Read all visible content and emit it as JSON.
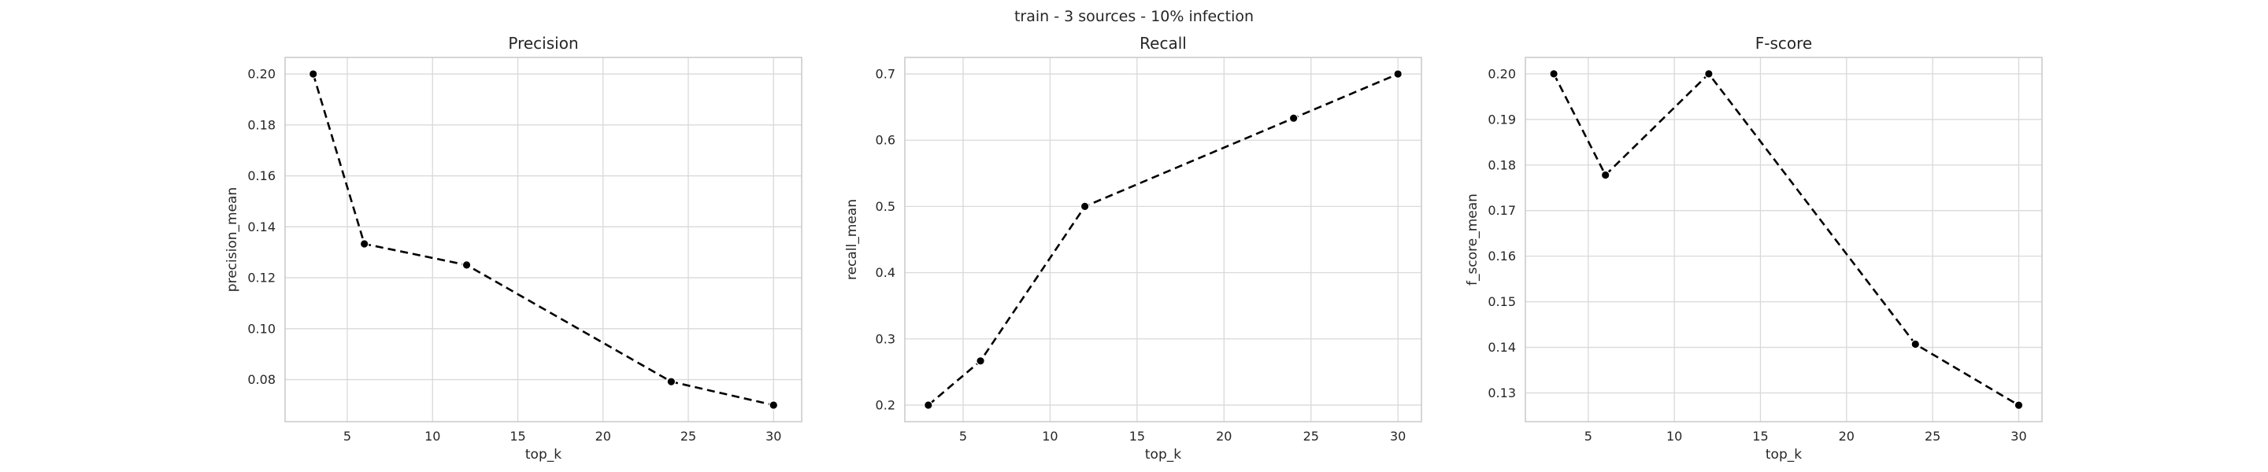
{
  "figure": {
    "suptitle": "train - 3 sources - 10% infection"
  },
  "chart_data": [
    {
      "type": "line",
      "title": "Precision",
      "xlabel": "top_k",
      "ylabel": "precision_mean",
      "x": [
        3,
        6,
        12,
        24,
        30
      ],
      "series": [
        {
          "values": [
            0.2,
            0.1333,
            0.125,
            0.0792,
            0.07
          ]
        }
      ],
      "xlim": [
        1.35,
        31.65
      ],
      "ylim": [
        0.0635,
        0.2065
      ],
      "xticks": [
        5,
        10,
        15,
        20,
        25,
        30
      ],
      "xtick_labels": [
        "5",
        "10",
        "15",
        "20",
        "25",
        "30"
      ],
      "yticks": [
        0.08,
        0.1,
        0.12,
        0.14,
        0.16,
        0.18,
        0.2
      ],
      "ytick_labels": [
        "0.08",
        "0.10",
        "0.12",
        "0.14",
        "0.16",
        "0.18",
        "0.20"
      ],
      "grid": true,
      "line_style": "dashed",
      "marker": "circle",
      "color": "#000000"
    },
    {
      "type": "line",
      "title": "Recall",
      "xlabel": "top_k",
      "ylabel": "recall_mean",
      "x": [
        3,
        6,
        12,
        24,
        30
      ],
      "series": [
        {
          "values": [
            0.2,
            0.2667,
            0.5,
            0.6333,
            0.7
          ]
        }
      ],
      "xlim": [
        1.65,
        31.35
      ],
      "ylim": [
        0.175,
        0.725
      ],
      "xticks": [
        5,
        10,
        15,
        20,
        25,
        30
      ],
      "xtick_labels": [
        "5",
        "10",
        "15",
        "20",
        "25",
        "30"
      ],
      "yticks": [
        0.2,
        0.3,
        0.4,
        0.5,
        0.6,
        0.7
      ],
      "ytick_labels": [
        "0.2",
        "0.3",
        "0.4",
        "0.5",
        "0.6",
        "0.7"
      ],
      "grid": true,
      "line_style": "dashed",
      "marker": "circle",
      "color": "#000000"
    },
    {
      "type": "line",
      "title": "F-score",
      "xlabel": "top_k",
      "ylabel": "f_score_mean",
      "x": [
        3,
        6,
        12,
        24,
        30
      ],
      "series": [
        {
          "values": [
            0.2,
            0.1778,
            0.2,
            0.1407,
            0.1273
          ]
        }
      ],
      "xlim": [
        1.35,
        31.35
      ],
      "ylim": [
        0.1237,
        0.2036
      ],
      "xticks": [
        5,
        10,
        15,
        20,
        25,
        30
      ],
      "xtick_labels": [
        "5",
        "10",
        "15",
        "20",
        "25",
        "30"
      ],
      "yticks": [
        0.13,
        0.14,
        0.15,
        0.16,
        0.17,
        0.18,
        0.19,
        0.2
      ],
      "ytick_labels": [
        "0.13",
        "0.14",
        "0.15",
        "0.16",
        "0.17",
        "0.18",
        "0.19",
        "0.20"
      ],
      "grid": true,
      "line_style": "dashed",
      "marker": "circle",
      "color": "#000000"
    }
  ]
}
